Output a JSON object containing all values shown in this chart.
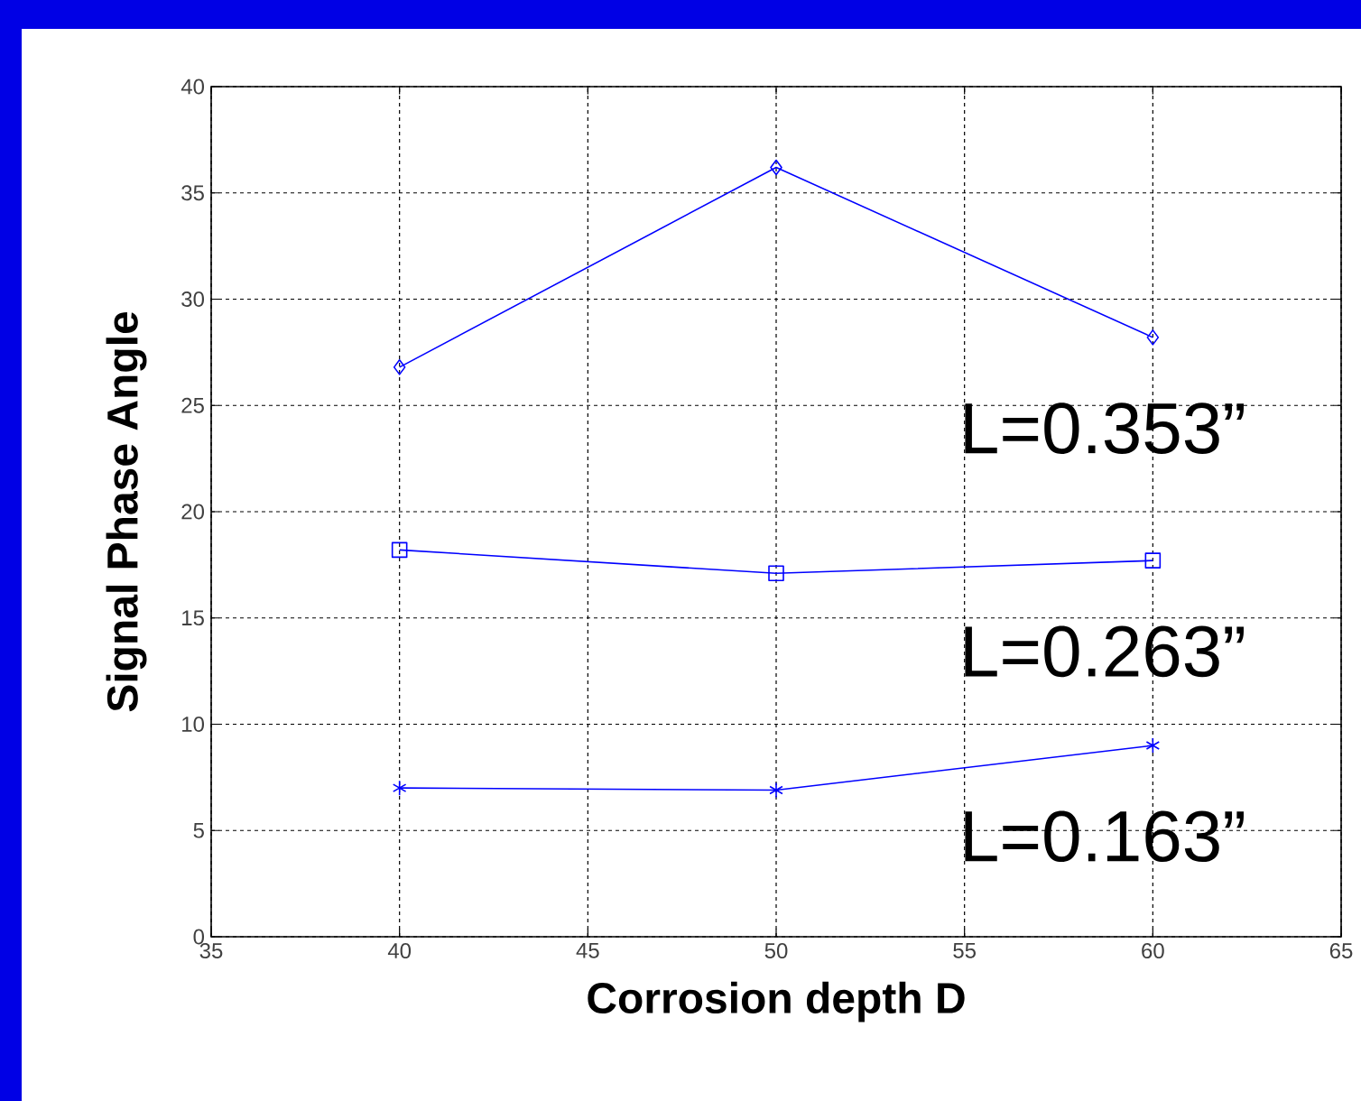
{
  "chart_data": {
    "type": "line",
    "xlabel": "Corrosion depth D",
    "ylabel": "Signal Phase Angle",
    "x": [
      40,
      50,
      60
    ],
    "series": [
      {
        "name": "L=0.353”",
        "color": "#0000ff",
        "marker": "diamond",
        "values": [
          26.8,
          36.2,
          28.2
        ]
      },
      {
        "name": "L=0.263”",
        "color": "#0000ff",
        "marker": "square",
        "values": [
          18.2,
          17.1,
          17.7
        ]
      },
      {
        "name": "L=0.163”",
        "color": "#0000ff",
        "marker": "cross",
        "values": [
          7.0,
          6.9,
          9.0
        ]
      }
    ],
    "xlim": [
      35,
      65
    ],
    "ylim": [
      0,
      40
    ],
    "xticks": [
      35,
      40,
      45,
      50,
      55,
      60,
      65
    ],
    "yticks": [
      0,
      5,
      10,
      15,
      20,
      25,
      30,
      35,
      40
    ],
    "grid": true,
    "line_style": "solid"
  }
}
